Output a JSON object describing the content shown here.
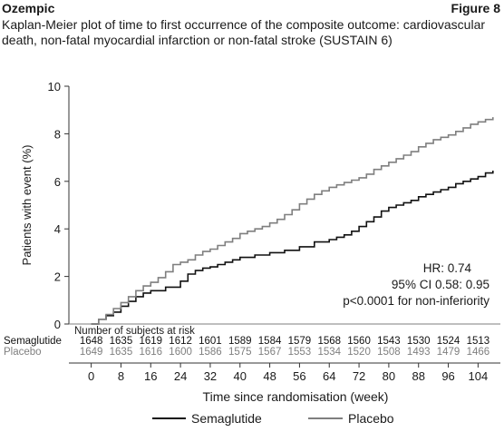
{
  "header": {
    "product": "Ozempic",
    "figure_label": "Figure 8",
    "caption_line1": "Kaplan-Meier plot of time to first occurrence of the composite outcome: cardiovascular",
    "caption_line2": "death, non-fatal myocardial infarction or non-fatal stroke (SUSTAIN 6)"
  },
  "colors": {
    "semaglutide": "#111111",
    "placebo": "#7f7f7f",
    "axis": "#333333"
  },
  "chart_data": {
    "type": "line",
    "title": "",
    "xlabel": "Time since randomisation (week)",
    "ylabel": "Patients with event (%)",
    "xlim": [
      -6,
      110
    ],
    "ylim": [
      0,
      10
    ],
    "xticks": [
      0,
      8,
      16,
      24,
      32,
      40,
      48,
      56,
      64,
      72,
      80,
      88,
      96,
      104
    ],
    "yticks": [
      0,
      2,
      4,
      6,
      8,
      10
    ],
    "grid": false,
    "legend_position": "bottom",
    "series": [
      {
        "name": "Semaglutide",
        "color": "#111111",
        "x": [
          0,
          2,
          4,
          6,
          8,
          10,
          12,
          14,
          16,
          20,
          24,
          26,
          28,
          30,
          32,
          34,
          36,
          38,
          40,
          44,
          48,
          52,
          56,
          60,
          64,
          66,
          68,
          70,
          72,
          74,
          76,
          78,
          80,
          82,
          84,
          86,
          88,
          90,
          92,
          94,
          96,
          98,
          100,
          102,
          104,
          106,
          108
        ],
        "y": [
          0,
          0.2,
          0.35,
          0.5,
          0.75,
          0.95,
          1.15,
          1.3,
          1.4,
          1.55,
          1.8,
          2.1,
          2.25,
          2.35,
          2.4,
          2.5,
          2.6,
          2.7,
          2.8,
          2.9,
          3.0,
          3.1,
          3.25,
          3.45,
          3.55,
          3.65,
          3.75,
          3.9,
          4.1,
          4.3,
          4.5,
          4.75,
          4.9,
          5.0,
          5.1,
          5.2,
          5.35,
          5.45,
          5.55,
          5.65,
          5.75,
          5.9,
          6.0,
          6.1,
          6.2,
          6.35,
          6.45
        ]
      },
      {
        "name": "Placebo",
        "color": "#7f7f7f",
        "x": [
          0,
          2,
          4,
          6,
          8,
          10,
          12,
          14,
          16,
          18,
          20,
          22,
          24,
          26,
          28,
          30,
          32,
          34,
          36,
          38,
          40,
          42,
          44,
          46,
          48,
          50,
          52,
          54,
          56,
          58,
          60,
          62,
          64,
          66,
          68,
          70,
          72,
          74,
          76,
          78,
          80,
          82,
          84,
          86,
          88,
          90,
          92,
          94,
          96,
          98,
          100,
          102,
          104,
          106,
          108
        ],
        "y": [
          0,
          0.2,
          0.4,
          0.65,
          0.9,
          1.15,
          1.4,
          1.6,
          1.75,
          1.95,
          2.2,
          2.5,
          2.6,
          2.7,
          2.9,
          3.05,
          3.15,
          3.3,
          3.45,
          3.6,
          3.8,
          3.9,
          4.0,
          4.1,
          4.25,
          4.4,
          4.6,
          4.8,
          5.05,
          5.25,
          5.45,
          5.6,
          5.75,
          5.85,
          5.95,
          6.05,
          6.15,
          6.3,
          6.5,
          6.65,
          6.8,
          6.95,
          7.1,
          7.25,
          7.45,
          7.6,
          7.75,
          7.85,
          7.95,
          8.1,
          8.25,
          8.4,
          8.5,
          8.6,
          8.7
        ]
      }
    ],
    "annotations": [
      "HR: 0.74",
      "95% CI 0.58: 0.95",
      "p<0.0001 for non-inferiority"
    ],
    "risk_table": {
      "heading": "Number of subjects at risk",
      "rows": [
        {
          "label": "Semaglutide",
          "color": "#111111",
          "values": [
            "1648",
            "1635",
            "1619",
            "1612",
            "1601",
            "1589",
            "1584",
            "1579",
            "1568",
            "1560",
            "1543",
            "1530",
            "1524",
            "1513"
          ]
        },
        {
          "label": "Placebo",
          "color": "#7f7f7f",
          "values": [
            "1649",
            "1635",
            "1616",
            "1600",
            "1586",
            "1575",
            "1567",
            "1553",
            "1534",
            "1520",
            "1508",
            "1493",
            "1479",
            "1466"
          ]
        }
      ]
    }
  }
}
